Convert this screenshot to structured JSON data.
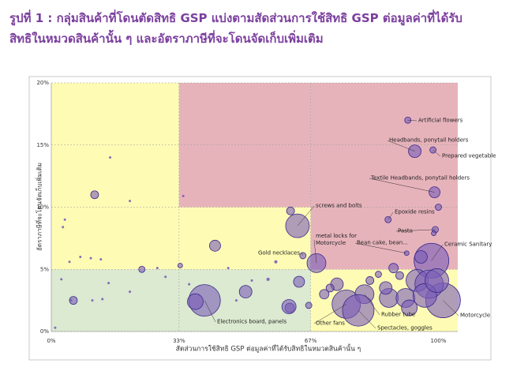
{
  "chart_data": {
    "type": "bubble",
    "title_lines": [
      "รูปที่ 1 : กลุ่มสินค้าที่โดนตัดสิทธิ GSP แบ่งตามสัดส่วนการใช้สิทธิ GSP ต่อมูลค่าที่ได้รับ",
      "สิทธิในหมวดสินค้านั้น ๆ และอัตราภาษีที่จะโดนจัดเก็บเพิ่มเติม"
    ],
    "x_label": "สัดส่วนการใช้สิทธิ GSP ต่อมูลค่าที่ได้รับสิทธิในหมวดสินค้านั้น ๆ",
    "y_label": "อัตราภาษีที่จะโดนจัดเก็บเพิ่มเติม",
    "xlim": [
      0,
      105
    ],
    "ylim": [
      0,
      20
    ],
    "xticks": [
      {
        "value": 0,
        "label": "0%"
      },
      {
        "value": 33,
        "label": "33%"
      },
      {
        "value": 67,
        "label": "67%"
      },
      {
        "value": 100,
        "label": "100%"
      }
    ],
    "yticks": [
      {
        "value": 0,
        "label": "0%"
      },
      {
        "value": 5,
        "label": "5%"
      },
      {
        "value": 10,
        "label": "10%"
      },
      {
        "value": 15,
        "label": "15%"
      },
      {
        "value": 20,
        "label": "20%"
      }
    ],
    "grid": true,
    "regions": [
      {
        "x": [
          0,
          33
        ],
        "y": [
          0,
          5
        ],
        "color": "#dbead0"
      },
      {
        "x": [
          0,
          33
        ],
        "y": [
          5,
          20
        ],
        "color": "#fefcb4"
      },
      {
        "x": [
          33,
          67
        ],
        "y": [
          0,
          5
        ],
        "color": "#dbead0"
      },
      {
        "x": [
          33,
          67
        ],
        "y": [
          5,
          10
        ],
        "color": "#fefcb4"
      },
      {
        "x": [
          33,
          67
        ],
        "y": [
          10,
          20
        ],
        "color": "#e7b3bb"
      },
      {
        "x": [
          67,
          105
        ],
        "y": [
          0,
          5
        ],
        "color": "#fefcb4"
      },
      {
        "x": [
          67,
          105
        ],
        "y": [
          5,
          20
        ],
        "color": "#e7b3bb"
      }
    ],
    "color": "#7a5cb8",
    "x": [
      92.1,
      93.9,
      98.6,
      99.0,
      100,
      87.0,
      99.2,
      98.8,
      98.2,
      101.2,
      91.8,
      63.6,
      61.8,
      68.5,
      65.0,
      39.6,
      37.2,
      76.2,
      80.9,
      79.3,
      11.2,
      42.3,
      5.7,
      23.4,
      50.2,
      61.6,
      64.0,
      61.4,
      87.2,
      91.5,
      94.5,
      97.6,
      86.4,
      88.4,
      73.8,
      70.5,
      82.3,
      92.5,
      96.5,
      99.6,
      72.0,
      66.5,
      84.5,
      90.0,
      95.5,
      3.5,
      2.6,
      4.7,
      7.5,
      10.2,
      12.8,
      5.1,
      10.6,
      13.2,
      15.2,
      20.3,
      14.8,
      20.3,
      27.4,
      29.5,
      35.6,
      45.7,
      47.8,
      51.8,
      34.1,
      1.0,
      3.0,
      56,
      58,
      33.3
    ],
    "values": [
      17.0,
      14.5,
      14.6,
      11.2,
      10.0,
      9.0,
      8.2,
      7.9,
      5.7,
      2.5,
      6.3,
      8.5,
      9.7,
      5.5,
      6.1,
      2.5,
      2.4,
      2.2,
      3.0,
      1.7,
      11.0,
      6.9,
      2.5,
      5.0,
      3.2,
      1.9,
      4.0,
      2.0,
      2.7,
      2.7,
      4.1,
      3.8,
      3.5,
      5.1,
      3.8,
      3.0,
      4.1,
      1.9,
      2.9,
      4.1,
      3.5,
      2.1,
      4.6,
      4.5,
      6.0,
      9.0,
      4.2,
      5.6,
      6.0,
      5.9,
      5.8,
      2.5,
      2.5,
      2.6,
      14.0,
      10.5,
      3.9,
      3.2,
      5.1,
      4.4,
      3.8,
      5.1,
      2.5,
      4.1,
      10.9,
      0.3,
      8.4,
      4.2,
      5.6,
      5.3
    ],
    "sizes": [
      16,
      64,
      16,
      49,
      16,
      16,
      16,
      9,
      484,
      484,
      9,
      225,
      25,
      144,
      16,
      400,
      100,
      324,
      144,
      400,
      25,
      49,
      25,
      16,
      64,
      36,
      49,
      81,
      144,
      144,
      196,
      324,
      64,
      36,
      64,
      36,
      25,
      100,
      225,
      225,
      25,
      16,
      16,
      25,
      64,
      2.25,
      2.25,
      2.25,
      2.25,
      2.25,
      2.25,
      2.25,
      2.25,
      2.25,
      2.25,
      2.25,
      2.25,
      2.25,
      2.25,
      2.25,
      2.25,
      2.25,
      2.25,
      2.25,
      2.25,
      2.25,
      2.25,
      4,
      4,
      9
    ],
    "point_labels": [
      "Artificial flowers",
      "Headbands, ponytail holders",
      "Prepared vegetable",
      "Textile Headbands, ponytail holders",
      null,
      "Epoxide resins",
      "Pasta",
      null,
      "Ceramic Sanitary",
      "Motorcycle",
      "Bean cake, bean...",
      "screws and bolts",
      null,
      "metal locks for Motorcycle",
      "Gold necklaces",
      "Electronics board, panels",
      null,
      "Other fans",
      "Rubber tube",
      "Spectacles, goggles",
      null,
      null,
      null,
      null,
      null,
      null,
      null,
      null,
      null,
      null,
      null,
      null,
      null,
      null,
      null,
      null,
      null,
      null,
      null,
      null,
      null,
      null,
      null,
      null,
      null,
      null,
      null,
      null,
      null,
      null,
      null,
      null,
      null,
      null,
      null,
      null,
      null,
      null,
      null,
      null,
      null,
      null,
      null,
      null,
      null,
      null,
      null,
      null,
      null,
      null
    ]
  }
}
